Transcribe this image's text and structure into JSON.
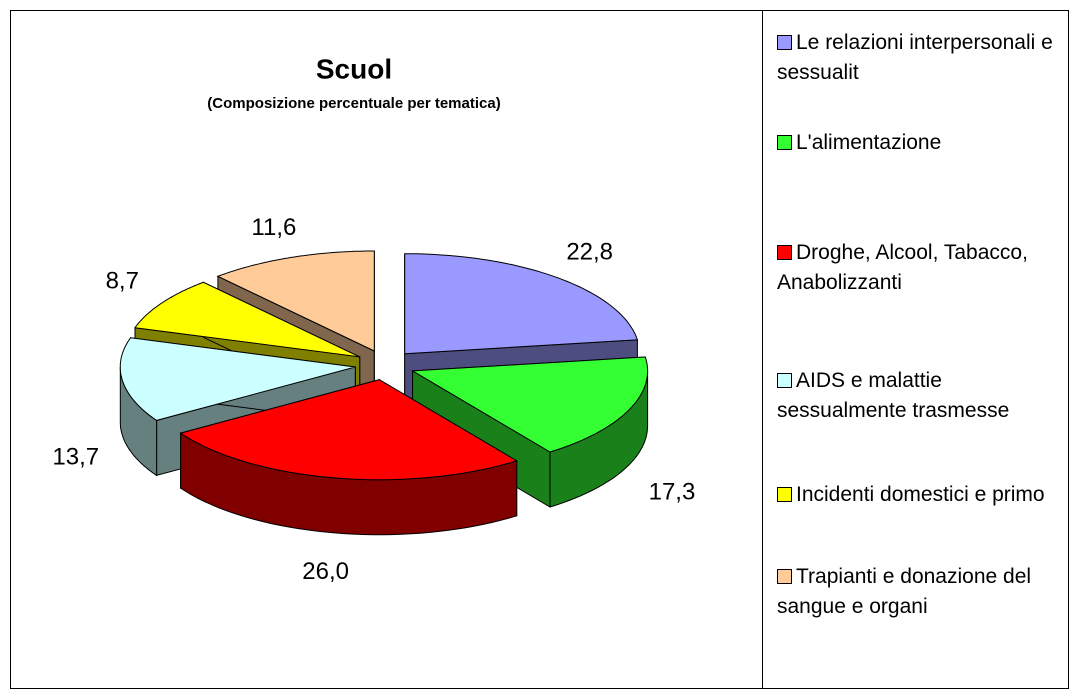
{
  "chart_data": {
    "type": "pie",
    "title": "Scuol",
    "subtitle": "(Composizione percentuale per tematica)",
    "categories": [
      "Le relazioni interpersonali e sessualit",
      "L'alimentazione",
      "Droghe, Alcool, Tabacco, Anabolizzanti",
      "AIDS e malattie sessualmente trasmesse",
      "Incidenti domestici e primo",
      "Trapianti e donazione del sangue e organi"
    ],
    "values": [
      22.8,
      17.3,
      26.0,
      13.7,
      8.7,
      11.6
    ],
    "value_labels": [
      "22,8",
      "17,3",
      "26,0",
      "13,7",
      "8,7",
      "11,6"
    ],
    "colors": [
      "#9999ff",
      "#33ff33",
      "#ff0000",
      "#ccffff",
      "#ffff00",
      "#ffcc99"
    ]
  }
}
